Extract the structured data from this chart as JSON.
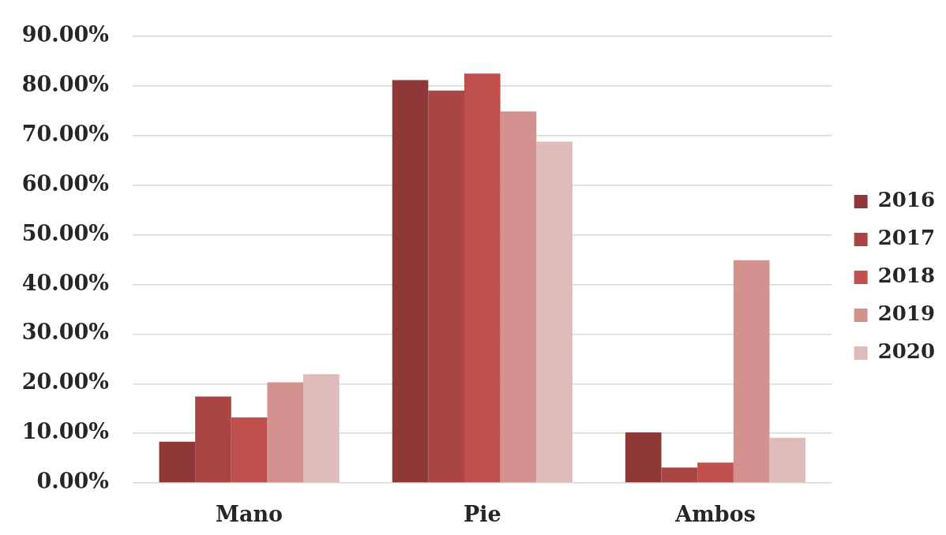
{
  "chart_data": {
    "type": "bar",
    "categories": [
      "Mano",
      "Pie",
      "Ambos"
    ],
    "series": [
      {
        "name": "2016",
        "color": "#8e3937",
        "values": [
          8.3,
          81.2,
          10.2
        ]
      },
      {
        "name": "2017",
        "color": "#a94644",
        "values": [
          17.4,
          79.1,
          3.1
        ]
      },
      {
        "name": "2018",
        "color": "#c0504d",
        "values": [
          13.2,
          82.5,
          4.1
        ]
      },
      {
        "name": "2019",
        "color": "#d39290",
        "values": [
          20.3,
          74.9,
          44.9
        ]
      },
      {
        "name": "2020",
        "color": "#e0bbbb",
        "values": [
          21.9,
          68.8,
          9.1
        ]
      }
    ],
    "ylim": [
      0,
      90
    ],
    "yticks": [
      {
        "value": 0,
        "label": "0.00%"
      },
      {
        "value": 10,
        "label": "10.00%"
      },
      {
        "value": 20,
        "label": "20.00%"
      },
      {
        "value": 30,
        "label": "30.00%"
      },
      {
        "value": 40,
        "label": "40.00%"
      },
      {
        "value": 50,
        "label": "50.00%"
      },
      {
        "value": 60,
        "label": "60.00%"
      },
      {
        "value": 70,
        "label": "70.00%"
      },
      {
        "value": 80,
        "label": "80.00%"
      },
      {
        "value": 90,
        "label": "90.00%"
      }
    ],
    "grid": "y",
    "legend": "right"
  }
}
